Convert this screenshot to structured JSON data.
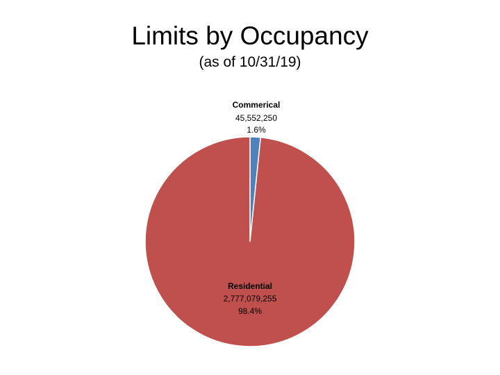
{
  "slide": {
    "title": "Limits by Occupancy",
    "subtitle": "(as of 10/31/19)"
  },
  "chart_data": {
    "type": "pie",
    "title": "Limits by Occupancy",
    "subtitle": "(as of 10/31/19)",
    "start_angle_deg": 0,
    "direction": "clockwise",
    "slices": [
      {
        "name": "Commerical",
        "value": 45552250,
        "value_label": "45,552,250",
        "percent": 1.6,
        "percent_label": "1.6%",
        "color": "#4F81BD"
      },
      {
        "name": "Residential",
        "value": 2777079255,
        "value_label": "2,777,079,255",
        "percent": 98.4,
        "percent_label": "98.4%",
        "color": "#C0504D"
      }
    ],
    "legend": "none"
  }
}
